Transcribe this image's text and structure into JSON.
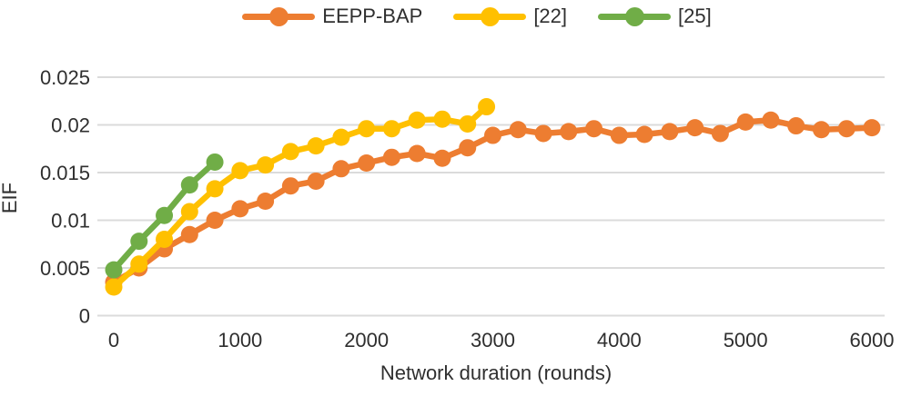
{
  "chart_data": {
    "type": "line",
    "title": "",
    "xlabel": "Network duration (rounds)",
    "ylabel": "EIF",
    "xlim": [
      0,
      6000
    ],
    "ylim": [
      0,
      0.025
    ],
    "x_ticks": [
      0,
      1000,
      2000,
      3000,
      4000,
      5000,
      6000
    ],
    "x_tick_labels": [
      "0",
      "1000",
      "2000",
      "3000",
      "4000",
      "5000",
      "6000"
    ],
    "y_ticks": [
      0,
      0.005,
      0.01,
      0.015,
      0.02,
      0.025
    ],
    "y_tick_labels": [
      "0",
      "0.005",
      "0.01",
      "0.015",
      "0.02",
      "0.025"
    ],
    "grid": "horizontal",
    "gridline_color": "#DBDBDB",
    "text_color": "#2f2f2f",
    "legend_position": "top",
    "series": [
      {
        "name": "EEPP-BAP",
        "color": "#ED7D31",
        "x": [
          0,
          200,
          400,
          600,
          800,
          1000,
          1200,
          1400,
          1600,
          1800,
          2000,
          2200,
          2400,
          2600,
          2800,
          3000,
          3200,
          3400,
          3600,
          3800,
          4000,
          4200,
          4400,
          4600,
          4800,
          5000,
          5200,
          5400,
          5600,
          5800,
          6000
        ],
        "y": [
          0.0035,
          0.005,
          0.007,
          0.0085,
          0.01,
          0.0112,
          0.012,
          0.0136,
          0.0141,
          0.0154,
          0.016,
          0.0166,
          0.017,
          0.0165,
          0.0176,
          0.0189,
          0.0195,
          0.0191,
          0.0193,
          0.0196,
          0.0189,
          0.019,
          0.0193,
          0.0197,
          0.0191,
          0.0203,
          0.0205,
          0.0199,
          0.0195,
          0.0196,
          0.0197
        ]
      },
      {
        "name": "[22]",
        "color": "#FFC000",
        "x": [
          0,
          200,
          400,
          600,
          800,
          1000,
          1200,
          1400,
          1600,
          1800,
          2000,
          2200,
          2400,
          2600,
          2800,
          2950
        ],
        "y": [
          0.003,
          0.0054,
          0.008,
          0.0109,
          0.0133,
          0.0152,
          0.0158,
          0.0172,
          0.0178,
          0.0187,
          0.0196,
          0.0196,
          0.0205,
          0.0206,
          0.0201,
          0.0219
        ]
      },
      {
        "name": "[25]",
        "color": "#70AD47",
        "x": [
          0,
          200,
          400,
          600,
          800
        ],
        "y": [
          0.0048,
          0.0078,
          0.0105,
          0.0137,
          0.0161
        ]
      }
    ]
  }
}
